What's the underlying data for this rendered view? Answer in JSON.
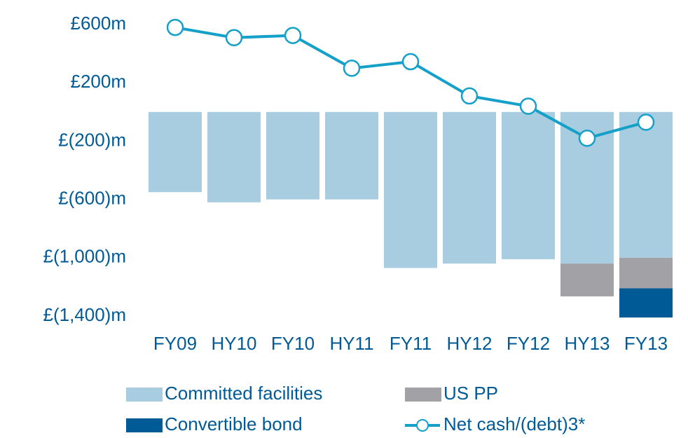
{
  "chart_data": {
    "type": "bar_line",
    "categories": [
      "FY09",
      "HY10",
      "FY10",
      "HY11",
      "FY11",
      "HY12",
      "FY12",
      "HY13",
      "FY13"
    ],
    "series": [
      {
        "name": "Committed facilities",
        "color": "#a9cde0",
        "kind": "bar",
        "values": [
          -550,
          -620,
          -600,
          -600,
          -1070,
          -1040,
          -1010,
          -1040,
          -1000
        ]
      },
      {
        "name": "US PP",
        "color": "#a1a1a6",
        "kind": "bar",
        "values": [
          null,
          null,
          null,
          null,
          null,
          null,
          null,
          -225,
          -210
        ]
      },
      {
        "name": "Convertible bond",
        "color": "#005a96",
        "kind": "bar",
        "values": [
          null,
          null,
          null,
          null,
          null,
          null,
          null,
          null,
          -200
        ]
      },
      {
        "name": "Net cash/(debt)3*",
        "color": "#14a0c8",
        "kind": "line",
        "values": [
          580,
          510,
          525,
          300,
          345,
          110,
          40,
          -180,
          -70
        ]
      }
    ],
    "ylim": [
      -1400,
      600
    ],
    "yticks": [
      {
        "value": 600,
        "label": "£600m"
      },
      {
        "value": 200,
        "label": "£200m"
      },
      {
        "value": -200,
        "label": "£(200)m"
      },
      {
        "value": -600,
        "label": "£(600)m"
      },
      {
        "value": -1000,
        "label": "£(1,000)m"
      },
      {
        "value": -1400,
        "label": "£(1,400)m"
      }
    ],
    "grid": false,
    "legend": "bottom"
  }
}
